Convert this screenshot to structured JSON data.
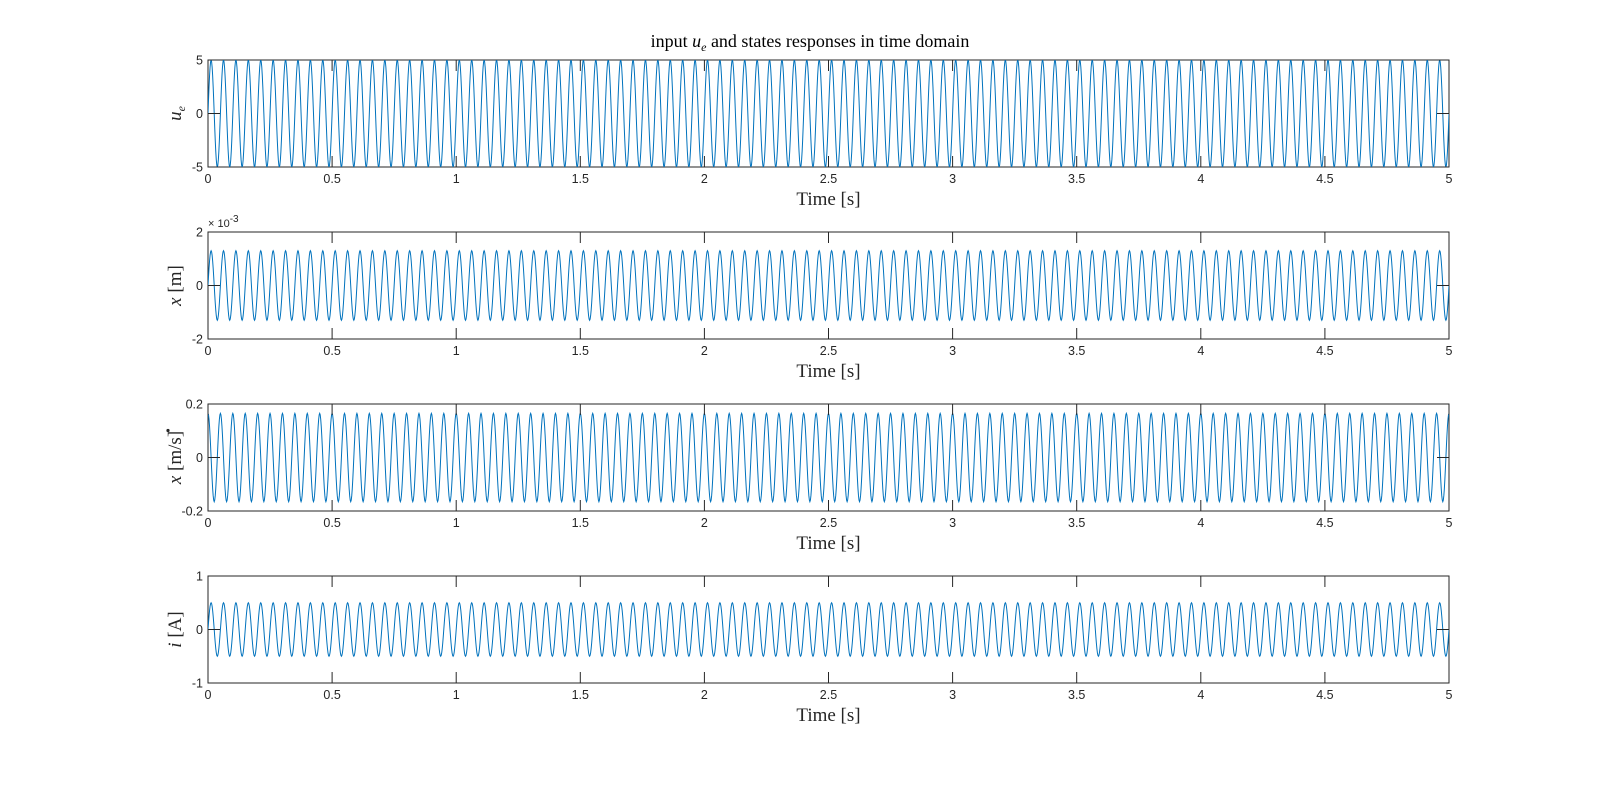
{
  "figure": {
    "title_prefix": "input ",
    "title_var": "u",
    "title_sub": "e",
    "title_suffix": " and states responses in time domain"
  },
  "colors": {
    "line": "#0072BD",
    "axes": "#262626",
    "background": "#ffffff"
  },
  "chart_data": [
    {
      "type": "line",
      "title": "input u_e and states responses in time domain",
      "xlabel": "Time [s]",
      "ylabel": "u_e",
      "ylabel_main": "u",
      "ylabel_sub": "e",
      "ylabel_unit": "",
      "ylabel_dot": false,
      "xlim": [
        0,
        5
      ],
      "ylim": [
        -5,
        5
      ],
      "x_ticks": [
        0,
        0.5,
        1,
        1.5,
        2,
        2.5,
        3,
        3.5,
        4,
        4.5,
        5
      ],
      "x_tick_labels": [
        "0",
        "0.5",
        "1",
        "1.5",
        "2",
        "2.5",
        "3",
        "3.5",
        "4",
        "4.5",
        "5"
      ],
      "y_ticks": [
        -5,
        0,
        5
      ],
      "y_tick_labels": [
        "-5",
        "0",
        "5"
      ],
      "exponent_label": "",
      "grid": false,
      "series": [
        {
          "amplitude": 5,
          "frequency_hz": 20,
          "phase_deg": 0,
          "time_range": [
            0,
            5
          ]
        }
      ]
    },
    {
      "type": "line",
      "xlabel": "Time [s]",
      "ylabel": "x [m]",
      "ylabel_main": "x",
      "ylabel_sub": "",
      "ylabel_unit": " [m]",
      "ylabel_dot": false,
      "xlim": [
        0,
        5
      ],
      "ylim": [
        -0.002,
        0.002
      ],
      "x_ticks": [
        0,
        0.5,
        1,
        1.5,
        2,
        2.5,
        3,
        3.5,
        4,
        4.5,
        5
      ],
      "x_tick_labels": [
        "0",
        "0.5",
        "1",
        "1.5",
        "2",
        "2.5",
        "3",
        "3.5",
        "4",
        "4.5",
        "5"
      ],
      "y_ticks": [
        -0.002,
        0,
        0.002
      ],
      "y_tick_labels": [
        "-2",
        "0",
        "2"
      ],
      "exponent_label": "× 10",
      "exponent_power": "-3",
      "grid": false,
      "series": [
        {
          "amplitude": 0.0013,
          "frequency_hz": 20,
          "phase_deg": 0,
          "time_range": [
            0,
            5
          ]
        }
      ]
    },
    {
      "type": "line",
      "xlabel": "Time [s]",
      "ylabel": "ẋ [m/s]",
      "ylabel_main": "x",
      "ylabel_sub": "",
      "ylabel_unit": " [m/s]",
      "ylabel_dot": true,
      "xlim": [
        0,
        5
      ],
      "ylim": [
        -0.2,
        0.2
      ],
      "x_ticks": [
        0,
        0.5,
        1,
        1.5,
        2,
        2.5,
        3,
        3.5,
        4,
        4.5,
        5
      ],
      "x_tick_labels": [
        "0",
        "0.5",
        "1",
        "1.5",
        "2",
        "2.5",
        "3",
        "3.5",
        "4",
        "4.5",
        "5"
      ],
      "y_ticks": [
        -0.2,
        0,
        0.2
      ],
      "y_tick_labels": [
        "-0.2",
        "0",
        "0.2"
      ],
      "exponent_label": "",
      "grid": false,
      "series": [
        {
          "amplitude": 0.165,
          "frequency_hz": 20,
          "phase_deg": 90,
          "time_range": [
            0,
            5
          ]
        }
      ]
    },
    {
      "type": "line",
      "xlabel": "Time [s]",
      "ylabel": "i [A]",
      "ylabel_main": "i",
      "ylabel_sub": "",
      "ylabel_unit": " [A]",
      "ylabel_dot": false,
      "xlim": [
        0,
        5
      ],
      "ylim": [
        -1,
        1
      ],
      "x_ticks": [
        0,
        0.5,
        1,
        1.5,
        2,
        2.5,
        3,
        3.5,
        4,
        4.5,
        5
      ],
      "x_tick_labels": [
        "0",
        "0.5",
        "1",
        "1.5",
        "2",
        "2.5",
        "3",
        "3.5",
        "4",
        "4.5",
        "5"
      ],
      "y_ticks": [
        -1,
        0,
        1
      ],
      "y_tick_labels": [
        "-1",
        "0",
        "1"
      ],
      "exponent_label": "",
      "grid": false,
      "series": [
        {
          "amplitude": 0.5,
          "frequency_hz": 20,
          "phase_deg": 0,
          "time_range": [
            0,
            5
          ]
        }
      ]
    }
  ]
}
